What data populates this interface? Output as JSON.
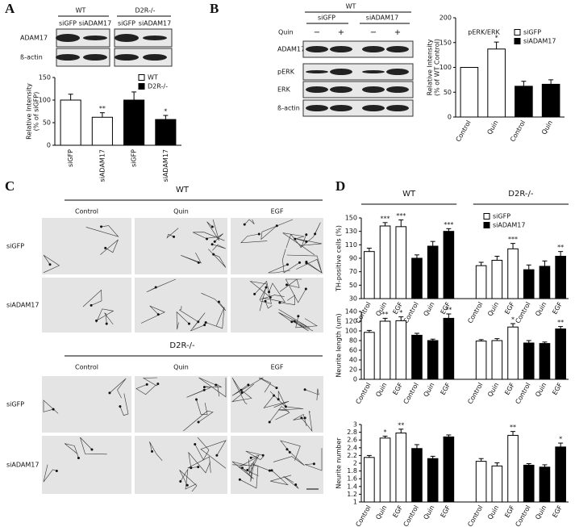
{
  "panel_labels": [
    "A",
    "B",
    "C",
    "D"
  ],
  "blot_a": {
    "genotypes": [
      "WT",
      "D2R-/-"
    ],
    "lanes": [
      "siGFP",
      "siADAM17",
      "siGFP",
      "siADAM17"
    ],
    "rows": [
      "ADAM17",
      "ß-actin"
    ]
  },
  "blot_b": {
    "genotype": "WT",
    "groups": [
      "siGFP",
      "siADAM17"
    ],
    "treatment": "Quin",
    "signs": [
      "−",
      "+",
      "−",
      "+"
    ],
    "rows": [
      "ADAM17",
      "pERK",
      "ERK",
      "ß-actin"
    ]
  },
  "images_c": {
    "genotypes": [
      "WT",
      "D2R-/-"
    ],
    "columns": [
      "Control",
      "Quin",
      "EGF"
    ],
    "rows": [
      "siGFP",
      "siADAM17"
    ]
  },
  "chart_data": [
    {
      "type": "bar",
      "categories": [
        "siGFP",
        "siADAM17",
        "siGFP",
        "siADAM17"
      ],
      "values": [
        100,
        62,
        100,
        57
      ],
      "errors": [
        13,
        10,
        18,
        9
      ],
      "bar_colors": [
        "#ffffff",
        "#ffffff",
        "#000000",
        "#000000"
      ],
      "significance": [
        null,
        "**",
        null,
        "*"
      ],
      "ylabel": [
        "Relative Intensity",
        "(% of siGFP)"
      ],
      "ylim": [
        0,
        150
      ],
      "yticks": [
        0,
        50,
        100,
        150
      ],
      "legend": [
        {
          "name": "WT",
          "color": "#ffffff"
        },
        {
          "name": "D2R-/-",
          "color": "#000000"
        }
      ]
    },
    {
      "type": "bar",
      "title": "pERK/ERK",
      "categories": [
        "Control",
        "Quin",
        "Control",
        "Quin"
      ],
      "values": [
        100,
        137,
        62,
        66
      ],
      "errors": [
        null,
        14,
        10,
        9
      ],
      "bar_colors": [
        "#ffffff",
        "#ffffff",
        "#000000",
        "#000000"
      ],
      "significance": [
        null,
        "*",
        null,
        null
      ],
      "ylabel": [
        "Relative Intensity",
        "(% of WT Control)"
      ],
      "ylim": [
        0,
        200
      ],
      "yticks": [
        0,
        50,
        100,
        150,
        200
      ],
      "legend": [
        {
          "name": "siGFP",
          "color": "#ffffff"
        },
        {
          "name": "siADAM17",
          "color": "#000000"
        }
      ]
    },
    {
      "type": "bar",
      "groups": [
        "WT",
        "D2R-/-"
      ],
      "categories": [
        "Control",
        "Quin",
        "EGF",
        "Control",
        "Quin",
        "EGF",
        "Control",
        "Quin",
        "EGF",
        "Control",
        "Quin",
        "EGF"
      ],
      "values": [
        100,
        138,
        137,
        90,
        108,
        130,
        79,
        87,
        104,
        73,
        78,
        93
      ],
      "errors": [
        5,
        5,
        10,
        5,
        7,
        4,
        5,
        6,
        8,
        7,
        8,
        7
      ],
      "bar_colors": [
        "#ffffff",
        "#ffffff",
        "#ffffff",
        "#000000",
        "#000000",
        "#000000",
        "#ffffff",
        "#ffffff",
        "#ffffff",
        "#000000",
        "#000000",
        "#000000"
      ],
      "significance": [
        null,
        "***",
        "***",
        null,
        null,
        "***",
        null,
        null,
        "***",
        null,
        null,
        "**"
      ],
      "ylabel": [
        "TH-positive cells (%)"
      ],
      "ylim": [
        30,
        150
      ],
      "yticks": [
        30,
        50,
        70,
        90,
        110,
        130,
        150
      ],
      "legend": [
        {
          "name": "siGFP",
          "color": "#ffffff"
        },
        {
          "name": "siADAM17",
          "color": "#000000"
        }
      ]
    },
    {
      "type": "bar",
      "categories": [
        "Control",
        "Quin",
        "EGF",
        "Control",
        "Quin",
        "EGF",
        "Control",
        "Quin",
        "EGF",
        "Control",
        "Quin",
        "EGF"
      ],
      "values": [
        97,
        120,
        121,
        91,
        80,
        126,
        79,
        80,
        108,
        75,
        74,
        104
      ],
      "errors": [
        4,
        6,
        8,
        4,
        3,
        9,
        3,
        4,
        7,
        5,
        3,
        5
      ],
      "bar_colors": [
        "#ffffff",
        "#ffffff",
        "#ffffff",
        "#000000",
        "#000000",
        "#000000",
        "#ffffff",
        "#ffffff",
        "#ffffff",
        "#000000",
        "#000000",
        "#000000"
      ],
      "significance": [
        null,
        "**",
        "*",
        null,
        null,
        "**",
        null,
        null,
        "*",
        null,
        null,
        "**"
      ],
      "ylabel": [
        "Neurite length (um)"
      ],
      "ylim": [
        0,
        140
      ],
      "yticks": [
        0,
        20,
        40,
        60,
        80,
        100,
        120,
        140
      ]
    },
    {
      "type": "bar",
      "categories": [
        "Control",
        "Quin",
        "EGF",
        "Control",
        "Quin",
        "EGF",
        "Control",
        "Quin",
        "EGF",
        "Control",
        "Quin",
        "EGF"
      ],
      "values": [
        2.15,
        2.65,
        2.78,
        2.38,
        2.12,
        2.68,
        2.05,
        1.93,
        2.72,
        1.95,
        1.9,
        2.42
      ],
      "errors": [
        0.05,
        0.05,
        0.1,
        0.1,
        0.06,
        0.05,
        0.07,
        0.08,
        0.1,
        0.04,
        0.06,
        0.1
      ],
      "bar_colors": [
        "#ffffff",
        "#ffffff",
        "#ffffff",
        "#000000",
        "#000000",
        "#000000",
        "#ffffff",
        "#ffffff",
        "#ffffff",
        "#000000",
        "#000000",
        "#000000"
      ],
      "significance": [
        null,
        "*",
        "**",
        null,
        null,
        null,
        null,
        null,
        "**",
        null,
        null,
        "*"
      ],
      "ylabel": [
        "Neurite number"
      ],
      "ylim": [
        1,
        3
      ],
      "yticks": [
        1,
        1.2,
        1.4,
        1.6,
        1.8,
        2,
        2.2,
        2.4,
        2.6,
        2.8,
        3
      ]
    }
  ]
}
